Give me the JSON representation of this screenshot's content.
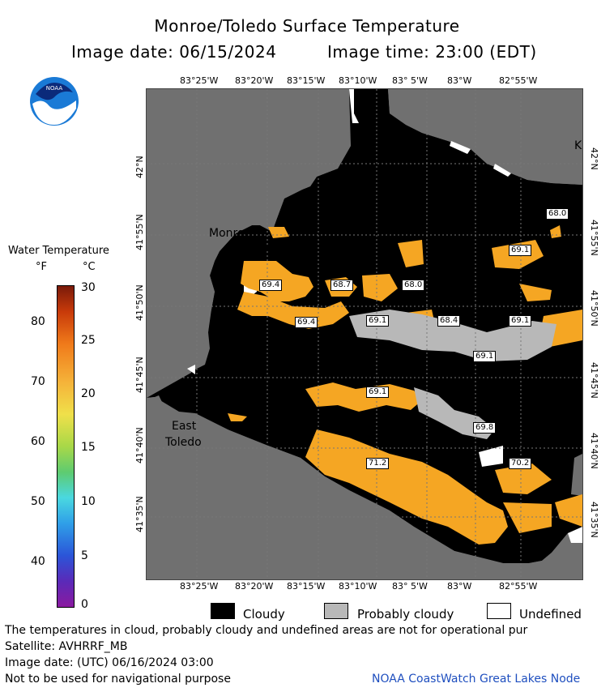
{
  "header": {
    "title": "Monroe/Toledo Surface Temperature",
    "date_line": "Image date: 06/15/2024",
    "time_line": "Image time: 23:00 (EDT)"
  },
  "logo": {
    "text": "NOAA"
  },
  "colorbar": {
    "title": "Water Temperature",
    "unit_f": "°F",
    "unit_c": "°C",
    "f_ticks": [
      "80",
      "70",
      "60",
      "50",
      "40"
    ],
    "c_ticks": [
      "30",
      "25",
      "20",
      "15",
      "10",
      "5",
      "0"
    ]
  },
  "map": {
    "top_lon": [
      "83°25'W",
      "83°20'W",
      "83°15'W",
      "83°10'W",
      "83° 5'W",
      "83°W",
      "82°55'W"
    ],
    "bottom_lon": [
      "83°25'W",
      "83°20'W",
      "83°15'W",
      "83°10'W",
      "83° 5'W",
      "83°W",
      "82°55'W"
    ],
    "left_lat": [
      "42°N",
      "41°55'N",
      "41°50'N",
      "41°45'N",
      "41°40'N",
      "41°35'N"
    ],
    "right_lat": [
      "42°N",
      "41°55'N",
      "41°50'N",
      "41°45'N",
      "41°40'N",
      "41°35'N"
    ],
    "places": {
      "monroe": "Monroe",
      "east": "East",
      "toledo": "Toledo",
      "k": "K"
    },
    "temps": [
      "68.0",
      "69.1",
      "69.4",
      "68.7",
      "68.0",
      "69.4",
      "69.1",
      "68.4",
      "69.1",
      "69.1",
      "69.1",
      "69.8",
      "71.2",
      "70.2"
    ]
  },
  "legend": {
    "cloudy": "Cloudy",
    "probably_cloudy": "Probably cloudy",
    "undefined": "Undefined"
  },
  "footer": {
    "note": "The temperatures in cloud, probably cloudy and undefined areas are not for operational pur",
    "satellite": "Satellite: AVHRRF_MB",
    "utc_date": "Image date: (UTC) 06/16/2024  03:00",
    "nav": "Not to be used for navigational purpose",
    "credit": "NOAA CoastWatch Great Lakes Node"
  },
  "colors": {
    "land": "#707070",
    "cloud": "#000000",
    "probably_cloudy": "#b8b8b8",
    "warm": "#f5a623",
    "credit": "#1f4fbf"
  }
}
